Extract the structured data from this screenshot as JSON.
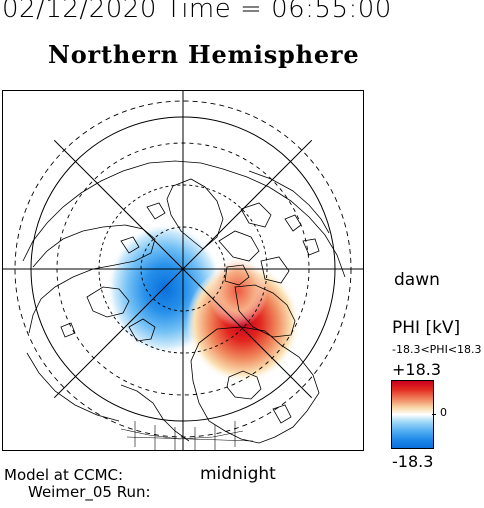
{
  "header": {
    "text": "02/12/2020 Time = 06:55:00"
  },
  "title": "Northern Hemisphere",
  "map": {
    "labels": {
      "dawn": "dawn",
      "midnight": "midnight"
    },
    "colors": {
      "positive": "#d7191c",
      "negative": "#1e88e5",
      "land": "#000000",
      "grid": "#000000"
    }
  },
  "footer": {
    "line1": "Model at CCMC:",
    "line2": "Weimer_05 Run:"
  },
  "colorbar": {
    "title": "PHI [kV]",
    "range_text": "-18.3<PHI<18.3",
    "max_label": "+18.3",
    "mid_label": "0",
    "min_label": "-18.3",
    "min": -18.3,
    "max": 18.3
  }
}
